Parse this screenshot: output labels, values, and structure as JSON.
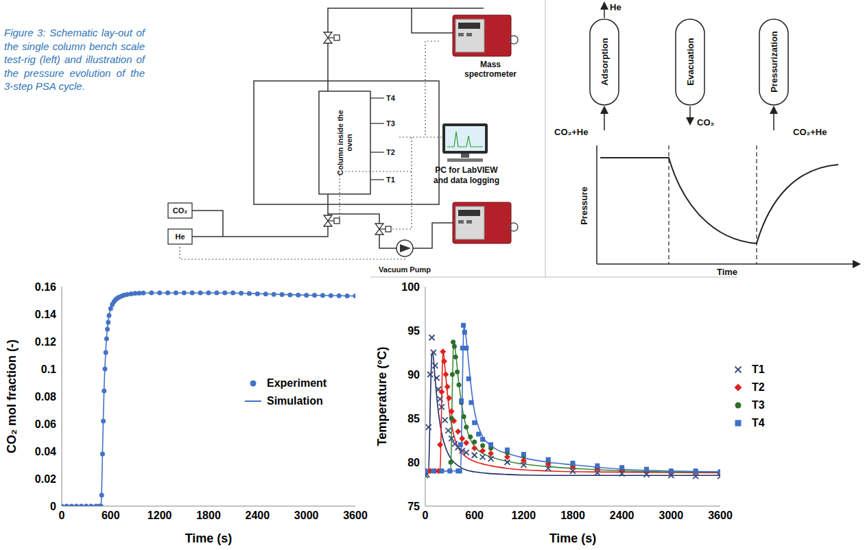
{
  "caption": "Figure 3: Schematic lay-out of the single column bench scale test-rig (left) and illustration of the pressure evolution of the 3-step PSA cycle.",
  "schematic": {
    "column": "Column inside the oven",
    "thermocouples": [
      "T4",
      "T3",
      "T2",
      "T1"
    ],
    "mass_spectrometer": "Mass spectrometer",
    "pc": "PC for LabVIEW and data logging",
    "vacuum_pump": "Vacuum Pump",
    "gases": [
      "CO₂",
      "He"
    ]
  },
  "cycle": {
    "steps": [
      {
        "label": "Adsorption",
        "inlet": "CO₂+He",
        "outlet": "He"
      },
      {
        "label": "Evacuation",
        "outlet": "CO₂"
      },
      {
        "label": "Pressurization",
        "inlet": "CO₂+He"
      }
    ],
    "y_label": "Pressure",
    "x_label": "Time"
  },
  "chart_data": [
    {
      "type": "line",
      "x_label": "Time (s)",
      "y_label": "CO₂ mol fraction (-)",
      "xlim": [
        0,
        3600
      ],
      "xticks": [
        0,
        600,
        1200,
        1800,
        2400,
        3000,
        3600
      ],
      "ylim": [
        0,
        0.16
      ],
      "yticks": [
        0,
        0.02,
        0.04,
        0.06,
        0.08,
        0.1,
        0.12,
        0.14,
        0.16
      ],
      "legend": "right",
      "series": [
        {
          "name": "Experiment",
          "type": "scatter",
          "marker": "circle",
          "color": "#4472c4",
          "x": [
            0,
            60,
            120,
            180,
            240,
            300,
            360,
            420,
            460,
            480,
            490,
            500,
            510,
            520,
            530,
            540,
            550,
            560,
            570,
            580,
            600,
            620,
            640,
            660,
            680,
            700,
            730,
            760,
            800,
            850,
            900,
            950,
            1000,
            1100,
            1200,
            1300,
            1400,
            1500,
            1600,
            1700,
            1800,
            1900,
            2000,
            2100,
            2200,
            2300,
            2400,
            2500,
            2600,
            2700,
            2800,
            2900,
            3000,
            3100,
            3200,
            3300,
            3400,
            3500,
            3600
          ],
          "values": [
            0,
            0,
            0,
            0,
            0,
            0,
            0,
            0,
            0,
            0,
            0.008,
            0.038,
            0.062,
            0.084,
            0.1,
            0.112,
            0.122,
            0.129,
            0.134,
            0.139,
            0.144,
            0.147,
            0.149,
            0.1505,
            0.1515,
            0.1523,
            0.153,
            0.1537,
            0.1543,
            0.1548,
            0.1551,
            0.1553,
            0.1554,
            0.1555,
            0.1555,
            0.1555,
            0.1555,
            0.1555,
            0.1555,
            0.1555,
            0.1555,
            0.1555,
            0.1555,
            0.1555,
            0.1553,
            0.155,
            0.1548,
            0.1546,
            0.1544,
            0.1542,
            0.154,
            0.1539,
            0.1538,
            0.1537,
            0.1536,
            0.1535,
            0.1534,
            0.1533,
            0.1532
          ]
        },
        {
          "name": "Simulation",
          "color": "#4472c4",
          "x": [
            0,
            480,
            485,
            490,
            495,
            500,
            510,
            520,
            530,
            540,
            550,
            560,
            580,
            600,
            630,
            660,
            700,
            750,
            800,
            900,
            1000,
            1200,
            1500,
            1800,
            2100,
            2400,
            2700,
            3000,
            3300,
            3600
          ],
          "values": [
            0,
            0,
            0.003,
            0.012,
            0.025,
            0.04,
            0.065,
            0.087,
            0.102,
            0.114,
            0.123,
            0.13,
            0.139,
            0.144,
            0.148,
            0.1508,
            0.1525,
            0.1538,
            0.1545,
            0.1551,
            0.1554,
            0.1555,
            0.1555,
            0.1555,
            0.1554,
            0.1549,
            0.1543,
            0.1538,
            0.1535,
            0.1532
          ]
        }
      ]
    },
    {
      "type": "line",
      "x_label": "Time (s)",
      "y_label": "Temperature (°C)",
      "xlim": [
        0,
        3600
      ],
      "xticks": [
        0,
        600,
        1200,
        1800,
        2400,
        3000,
        3600
      ],
      "ylim": [
        75,
        100
      ],
      "yticks": [
        75,
        80,
        85,
        90,
        95,
        100
      ],
      "legend": "right",
      "series": [
        {
          "name": "T1",
          "type": "scatter",
          "marker": "x",
          "color": "#3b4a7a",
          "x": [
            0,
            20,
            40,
            60,
            80,
            100,
            120,
            140,
            160,
            180,
            200,
            240,
            280,
            320,
            360,
            400,
            450,
            500,
            600,
            700,
            800,
            1000,
            1200,
            1500,
            1800,
            2100,
            2400,
            2700,
            3000,
            3300,
            3600
          ],
          "values": [
            78.5,
            78.6,
            84,
            90,
            94.2,
            92.5,
            91,
            89.6,
            88.3,
            87.2,
            86.3,
            84.8,
            83.6,
            82.7,
            82.1,
            81.7,
            81.3,
            81.1,
            80.8,
            80.6,
            80.4,
            80,
            79.7,
            79.3,
            79,
            78.8,
            78.7,
            78.6,
            78.5,
            78.4,
            78.4
          ]
        },
        {
          "name": "T2",
          "type": "scatter",
          "marker": "diamond",
          "color": "#e0201b",
          "x": [
            0,
            60,
            120,
            160,
            180,
            200,
            215,
            230,
            250,
            270,
            290,
            320,
            350,
            400,
            450,
            500,
            600,
            700,
            800,
            1000,
            1200,
            1500,
            1800,
            2100,
            2400,
            2700,
            3000,
            3300,
            3600
          ],
          "values": [
            79,
            79,
            79,
            79,
            82,
            88,
            92.6,
            91.5,
            90,
            88.6,
            87.3,
            85.8,
            84.7,
            83.5,
            82.7,
            82.2,
            81.6,
            81.3,
            81,
            80.6,
            80.2,
            79.8,
            79.5,
            79.3,
            79.1,
            79,
            78.9,
            78.9,
            78.8
          ]
        },
        {
          "name": "T3",
          "type": "scatter",
          "marker": "circle",
          "color": "#2e6e2e",
          "x": [
            0,
            100,
            200,
            300,
            310,
            320,
            330,
            340,
            355,
            370,
            390,
            410,
            440,
            470,
            500,
            550,
            600,
            700,
            800,
            1000,
            1200,
            1500,
            1800,
            2100,
            2400,
            2700,
            3000,
            3300,
            3600
          ],
          "values": [
            79,
            79,
            79,
            79,
            80,
            85,
            90,
            93.7,
            93.2,
            92,
            90.3,
            88.8,
            86.8,
            85.2,
            84,
            82.9,
            82.3,
            81.9,
            81.6,
            81.1,
            80.7,
            80.2,
            79.8,
            79.5,
            79.3,
            79.1,
            79,
            79,
            78.9
          ]
        },
        {
          "name": "T4",
          "type": "scatter",
          "marker": "square",
          "color": "#3e6fc9",
          "x": [
            0,
            100,
            200,
            300,
            400,
            420,
            430,
            440,
            455,
            465,
            480,
            500,
            530,
            560,
            600,
            650,
            700,
            800,
            1000,
            1200,
            1500,
            1800,
            2100,
            2400,
            2700,
            3000,
            3300,
            3600
          ],
          "values": [
            79,
            79,
            79,
            79,
            79,
            79,
            82,
            87,
            93,
            95.6,
            94.8,
            93,
            89.5,
            86.8,
            84.5,
            83.2,
            82.6,
            82,
            81.4,
            80.9,
            80.3,
            79.9,
            79.6,
            79.4,
            79.2,
            79,
            79,
            78.9
          ]
        },
        {
          "color": "#1f2a6b",
          "x": [
            0,
            40,
            50,
            60,
            70,
            80,
            90,
            100,
            120,
            150,
            200,
            250,
            300,
            400,
            500,
            600,
            800,
            1000,
            1500,
            2000,
            3600
          ],
          "values": [
            79,
            79,
            82,
            86.5,
            90,
            92.3,
            92.5,
            91.8,
            89.5,
            86.5,
            83.3,
            81.6,
            80.6,
            79.6,
            79.1,
            78.9,
            78.7,
            78.6,
            78.5,
            78.5,
            78.5
          ]
        },
        {
          "color": "#e0201b",
          "x": [
            0,
            180,
            190,
            200,
            210,
            220,
            240,
            270,
            300,
            350,
            400,
            500,
            600,
            800,
            1000,
            1500,
            2000,
            3600
          ],
          "values": [
            79,
            79,
            82,
            87,
            91.5,
            92.6,
            90.8,
            87.8,
            85.4,
            83,
            81.7,
            80.6,
            80.1,
            79.6,
            79.3,
            79,
            78.9,
            78.8
          ]
        },
        {
          "color": "#3a8a3a",
          "x": [
            0,
            310,
            320,
            330,
            340,
            350,
            370,
            400,
            450,
            500,
            550,
            600,
            700,
            800,
            1000,
            1500,
            2000,
            3000,
            3600
          ],
          "values": [
            79,
            79,
            83,
            88.5,
            92.5,
            93.8,
            92.5,
            89.8,
            86.2,
            84,
            82.6,
            81.8,
            81,
            80.6,
            80.1,
            79.5,
            79.2,
            78.9,
            78.9
          ]
        },
        {
          "color": "#3e6fc9",
          "x": [
            0,
            430,
            440,
            450,
            460,
            470,
            480,
            500,
            530,
            560,
            600,
            650,
            700,
            800,
            900,
            1000,
            1200,
            1500,
            1800,
            2400,
            3000,
            3600
          ],
          "values": [
            79,
            79,
            82,
            87,
            92.5,
            95.5,
            95.2,
            94,
            91.2,
            88.5,
            85.8,
            84,
            82.9,
            81.9,
            81.3,
            81,
            80.5,
            80,
            79.7,
            79.2,
            79,
            78.9
          ]
        }
      ]
    }
  ]
}
